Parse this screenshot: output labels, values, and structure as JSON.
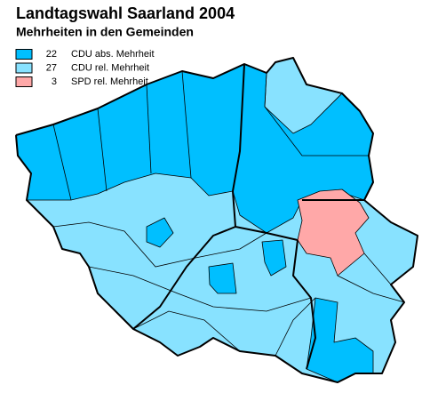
{
  "title": "Landtagswahl Saarland 2004",
  "subtitle": "Mehrheiten in den Gemeinden",
  "legend": [
    {
      "count": 22,
      "label": "CDU abs. Mehrheit",
      "color": "#00bfff"
    },
    {
      "count": 27,
      "label": "CDU rel. Mehrheit",
      "color": "#88e2ff"
    },
    {
      "count": 3,
      "label": "SPD rel. Mehrheit",
      "color": "#ffa8a8"
    }
  ]
}
